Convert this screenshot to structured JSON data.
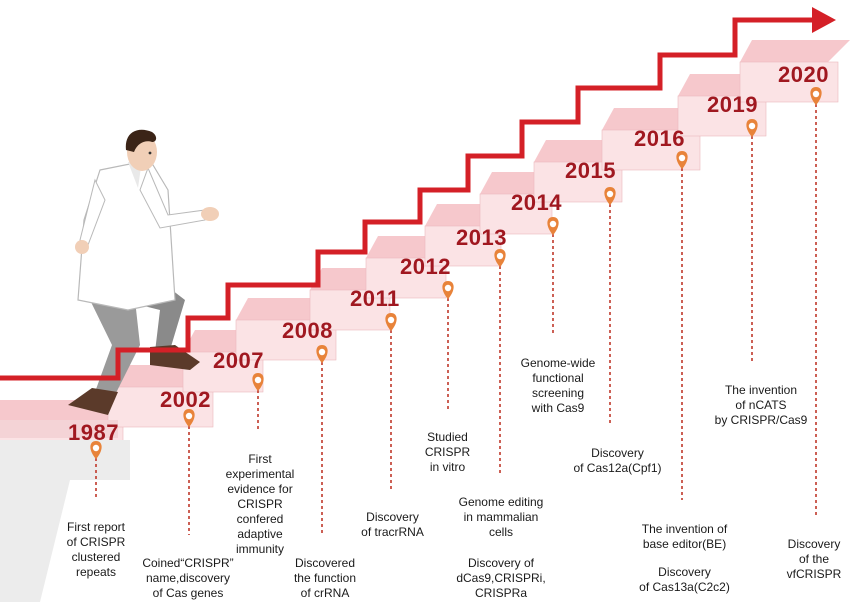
{
  "milestones": [
    {
      "year": "1987",
      "lines": [
        "First report",
        "of CRISPR",
        "clustered",
        "repeats"
      ]
    },
    {
      "year": "2002",
      "lines": [
        "Coined“CRISPR”",
        "name,discovery",
        "of Cas genes"
      ]
    },
    {
      "year": "2007",
      "lines": [
        "First",
        "experimental",
        "evidence for",
        "CRISPR",
        "confered",
        "adaptive",
        "immunity"
      ]
    },
    {
      "year": "2008",
      "lines": [
        "Discovered",
        "the function",
        "of crRNA"
      ]
    },
    {
      "year": "2011",
      "lines": [
        "Discovery",
        "of tracrRNA"
      ]
    },
    {
      "year": "2012",
      "lines": [
        "Studied",
        "CRISPR",
        "in vitro"
      ]
    },
    {
      "year": "2013",
      "lines": [
        "Genome editing",
        "in mammalian",
        "cells"
      ],
      "lines2": [
        "Discovery of",
        "dCas9,CRISPRi,",
        "CRISPRa"
      ]
    },
    {
      "year": "2014",
      "lines": [
        "Genome-wide",
        "functional",
        "screening",
        "with Cas9"
      ]
    },
    {
      "year": "2015",
      "lines": [
        "Discovery",
        "of Cas12a(Cpf1)"
      ]
    },
    {
      "year": "2016",
      "lines": [
        "The invention of",
        "base editor(BE)"
      ],
      "lines2": [
        "Discovery",
        "of Cas13a(C2c2)"
      ]
    },
    {
      "year": "2019",
      "lines": [
        "The invention",
        "of nCATS",
        "by CRISPR/Cas9"
      ]
    },
    {
      "year": "2020",
      "lines": [
        "Discovery",
        "of the",
        "vfCRISPR"
      ]
    }
  ],
  "colors": {
    "accent": "#d42027",
    "year_text": "#a01820",
    "step_top": "#f6c8cc",
    "step_riser": "#fbe3e5",
    "step_side": "#ecc9cc",
    "pin": "#e8833a",
    "dashed": "#c0392b"
  },
  "figure": {
    "name": "scientist",
    "coat": "#ffffff",
    "trousers": "#9a9a9a",
    "shoes": "#5b3a2a",
    "hair": "#3b2417"
  }
}
